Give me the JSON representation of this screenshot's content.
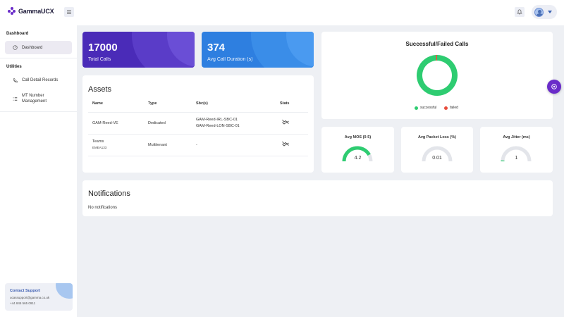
{
  "brand": {
    "name": "GammaUCX",
    "accent": "#6a2cc9"
  },
  "sidebar": {
    "sections": [
      {
        "title": "Dashboard",
        "items": [
          {
            "label": "Dashboard",
            "icon": "dashboard-icon",
            "active": true
          }
        ]
      },
      {
        "title": "Utilities",
        "items": [
          {
            "label": "Call Detail Records",
            "icon": "phone-icon"
          },
          {
            "label": "MT Number Management",
            "icon": "list-icon"
          }
        ]
      }
    ],
    "support": {
      "title": "Contact Support",
      "email": "ucassupport@gamma.co.uk",
      "phone": "+44 845 565 0911"
    }
  },
  "stats": {
    "total_calls": {
      "value": "17000",
      "label": "Total Calls",
      "color": "#4a2bb8"
    },
    "avg_duration": {
      "value": "374",
      "label": "Avg Call Duration (s)",
      "color": "#2e7fe0"
    }
  },
  "assets": {
    "title": "Assets",
    "columns": [
      "Name",
      "Type",
      "Sbc(s)",
      "Stats"
    ],
    "rows": [
      {
        "name": "GAM-Reed-VE",
        "sub": "",
        "type": "Dedicated",
        "sbcs": [
          "GAM-Reed-IRL-SBC-01",
          "GAM-Reed-LON-SBC-01"
        ]
      },
      {
        "name": "Teams",
        "sub": "EMEA133",
        "type": "Multitenant",
        "sbcs": [
          "-"
        ]
      }
    ]
  },
  "calls_chart": {
    "title": "Successful/Failed Calls",
    "legend": [
      {
        "name": "successful",
        "color": "#2ecc71"
      },
      {
        "name": "failed",
        "color": "#e74c3c"
      }
    ]
  },
  "chart_data": {
    "type": "pie",
    "title": "Successful/Failed Calls",
    "categories": [
      "successful",
      "failed"
    ],
    "values": [
      99,
      1
    ],
    "donut": true,
    "legend": "bottom"
  },
  "gauges": [
    {
      "title": "Avg MOS (0-5)",
      "value": "4.2",
      "fraction": 0.84,
      "color": "#2ecc71"
    },
    {
      "title": "Avg Packet Loss (%)",
      "value": "0.01",
      "fraction": 0.0,
      "color": "#2ecc71"
    },
    {
      "title": "Avg Jitter (ms)",
      "value": "1",
      "fraction": 0.02,
      "color": "#2ecc71"
    }
  ],
  "notifications": {
    "title": "Notifications",
    "empty_text": "No notifications"
  }
}
